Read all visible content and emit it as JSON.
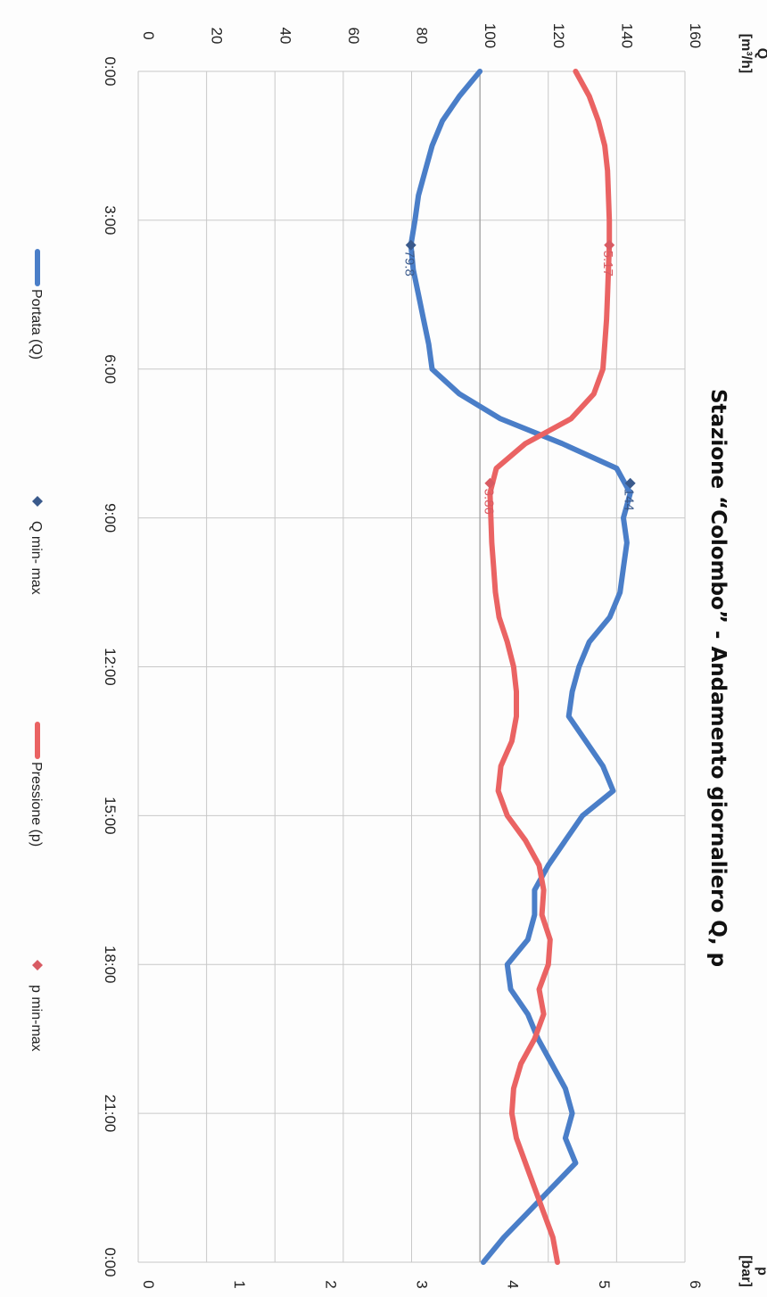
{
  "chart_data": {
    "type": "line",
    "title": "Stazione “Colombo” - Andamento giornaliero Q, p",
    "left_axis": {
      "label": "Q",
      "unit": "[m³/h]",
      "ylim": [
        0,
        160
      ],
      "ticks": [
        "0",
        "20",
        "40",
        "60",
        "80",
        "100",
        "120",
        "140",
        "160"
      ]
    },
    "right_axis": {
      "label": "p",
      "unit": "[bar]",
      "ylim": [
        0,
        6
      ],
      "ticks": [
        "0",
        "1",
        "2",
        "3",
        "4",
        "5",
        "6"
      ]
    },
    "x_axis": {
      "xlim": [
        0,
        24
      ],
      "tick_values": [
        0,
        3,
        6,
        9,
        12,
        15,
        18,
        21,
        24
      ],
      "tick_labels": [
        "0:00",
        "3:00",
        "6:00",
        "9:00",
        "12:00",
        "15:00",
        "18:00",
        "21:00",
        "0:00"
      ]
    },
    "grid": true,
    "legend_position": "bottom",
    "series": [
      {
        "name": "Portata (Q)",
        "axis": "left",
        "color": "#4a7ec8",
        "x": [
          0,
          0.5,
          1,
          1.5,
          2,
          2.5,
          3,
          3.5,
          4,
          4.5,
          5,
          5.5,
          6,
          6.5,
          7,
          7.5,
          8,
          8.5,
          9,
          9.5,
          10,
          10.5,
          11,
          11.5,
          12,
          12.5,
          13,
          13.5,
          14,
          14.5,
          15,
          15.5,
          16,
          16.5,
          17,
          17.5,
          18,
          18.5,
          19,
          19.5,
          20,
          20.5,
          21,
          21.5,
          22,
          22.5,
          23,
          23.5,
          24
        ],
        "y": [
          100,
          94,
          89,
          86,
          84,
          82,
          81,
          79.8,
          80.5,
          82,
          83.5,
          85,
          86,
          94,
          106,
          124,
          140,
          144,
          142,
          143,
          142,
          141,
          138,
          132,
          129,
          127,
          126,
          131,
          136,
          139,
          130,
          125,
          120,
          116,
          116,
          114,
          108,
          109,
          114,
          117,
          121,
          125,
          127,
          125,
          128,
          121,
          114,
          107,
          101
        ]
      },
      {
        "name": "Q min- max",
        "axis": "left",
        "color": "#3a5a8c",
        "marker": "diamond",
        "points": [
          {
            "x": 3.5,
            "y": 79.8,
            "label": "79.8"
          },
          {
            "x": 8.3,
            "y": 144,
            "label": "144"
          }
        ]
      },
      {
        "name": "Pressione (p)",
        "axis": "right",
        "color": "#ea6363",
        "x": [
          0,
          0.5,
          1,
          1.5,
          2,
          2.5,
          3,
          3.5,
          4,
          4.5,
          5,
          5.5,
          6,
          6.5,
          7,
          7.5,
          8,
          8.5,
          9,
          9.5,
          10,
          10.5,
          11,
          11.5,
          12,
          12.5,
          13,
          13.5,
          14,
          14.5,
          15,
          15.5,
          16,
          16.5,
          17,
          17.5,
          18,
          18.5,
          19,
          19.5,
          20,
          20.5,
          21,
          21.5,
          22,
          22.5,
          23,
          23.5,
          24
        ],
        "y": [
          4.8,
          4.95,
          5.05,
          5.12,
          5.15,
          5.16,
          5.17,
          5.17,
          5.16,
          5.15,
          5.14,
          5.12,
          5.1,
          5.0,
          4.75,
          4.25,
          3.93,
          3.86,
          3.87,
          3.88,
          3.9,
          3.92,
          3.96,
          4.05,
          4.12,
          4.15,
          4.15,
          4.1,
          3.98,
          3.95,
          4.05,
          4.25,
          4.4,
          4.45,
          4.43,
          4.52,
          4.5,
          4.4,
          4.45,
          4.35,
          4.2,
          4.12,
          4.1,
          4.15,
          4.25,
          4.35,
          4.45,
          4.55,
          4.6
        ]
      },
      {
        "name": "p min-max",
        "axis": "right",
        "color": "#d85b63",
        "marker": "diamond",
        "points": [
          {
            "x": 3.5,
            "y": 5.17,
            "label": "5.17"
          },
          {
            "x": 8.3,
            "y": 3.86,
            "label": "3.86"
          }
        ]
      }
    ]
  }
}
